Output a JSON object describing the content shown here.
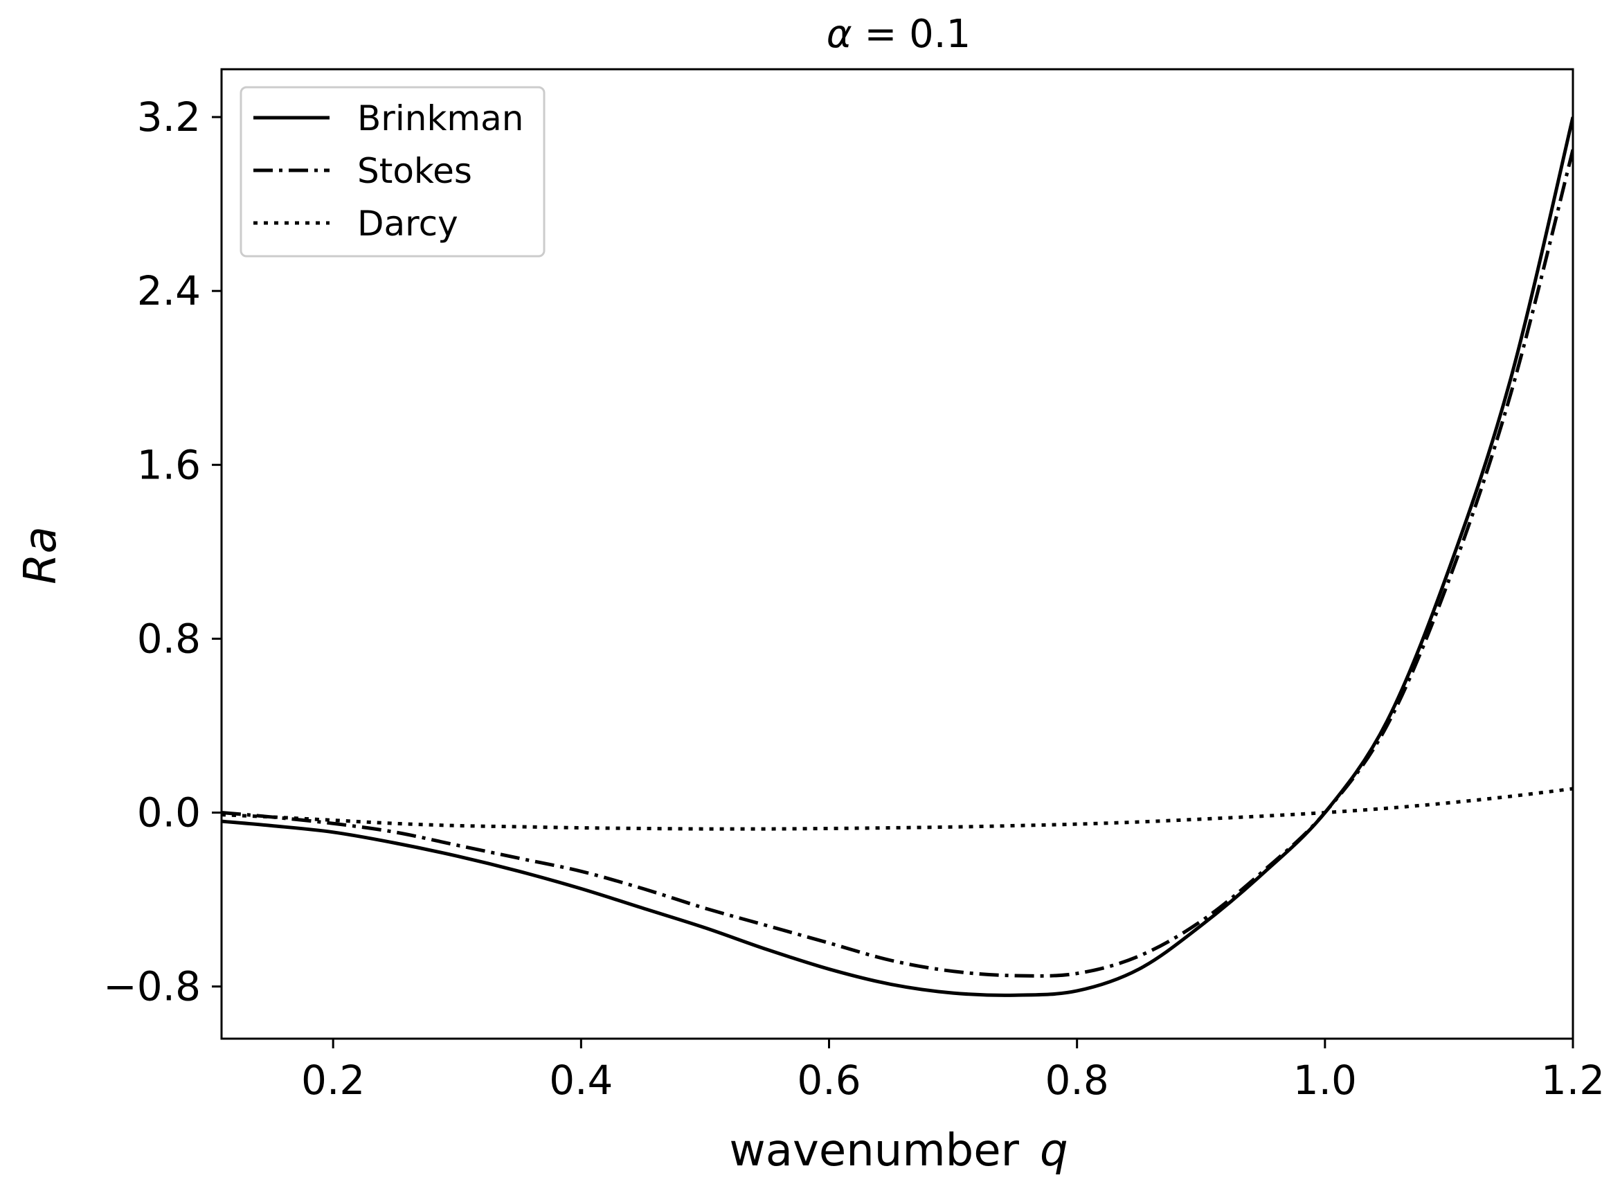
{
  "chart_data": {
    "type": "line",
    "title": "α = 0.1",
    "title_symbol": "α",
    "title_rest": " = 0.1",
    "xlabel": "wavenumber",
    "xlabel_var": "q",
    "ylabel": "Ra",
    "xlim": [
      0.11,
      1.2
    ],
    "ylim": [
      -1.04,
      3.42
    ],
    "xticks": [
      0.2,
      0.4,
      0.6,
      0.8,
      1.0,
      1.2
    ],
    "xtick_labels": [
      "0.2",
      "0.4",
      "0.6",
      "0.8",
      "1.0",
      "1.2"
    ],
    "yticks": [
      -0.8,
      0.0,
      0.8,
      1.6,
      2.4,
      3.2
    ],
    "ytick_labels": [
      "−0.8",
      "0.0",
      "0.8",
      "1.6",
      "2.4",
      "3.2"
    ],
    "grid": false,
    "legend_position": "upper-left",
    "series": [
      {
        "name": "Brinkman",
        "style": "solid",
        "x": [
          0.11,
          0.15,
          0.2,
          0.25,
          0.3,
          0.35,
          0.4,
          0.45,
          0.5,
          0.55,
          0.6,
          0.65,
          0.7,
          0.75,
          0.8,
          0.85,
          0.9,
          0.95,
          1.0,
          1.05,
          1.1,
          1.15,
          1.2
        ],
        "y": [
          -0.04,
          -0.06,
          -0.09,
          -0.14,
          -0.2,
          -0.27,
          -0.35,
          -0.44,
          -0.53,
          -0.63,
          -0.72,
          -0.79,
          -0.83,
          -0.84,
          -0.82,
          -0.72,
          -0.52,
          -0.28,
          0.0,
          0.42,
          1.12,
          2.0,
          3.2
        ]
      },
      {
        "name": "Stokes",
        "style": "dashdot",
        "x": [
          0.11,
          0.15,
          0.2,
          0.25,
          0.3,
          0.35,
          0.4,
          0.45,
          0.5,
          0.55,
          0.6,
          0.65,
          0.7,
          0.75,
          0.8,
          0.85,
          0.9,
          0.95,
          1.0,
          1.05,
          1.1,
          1.15,
          1.2
        ],
        "y": [
          0.0,
          -0.02,
          -0.05,
          -0.09,
          -0.15,
          -0.21,
          -0.27,
          -0.35,
          -0.44,
          -0.52,
          -0.6,
          -0.68,
          -0.73,
          -0.75,
          -0.74,
          -0.66,
          -0.5,
          -0.27,
          0.0,
          0.4,
          1.07,
          1.93,
          3.05
        ]
      },
      {
        "name": "Darcy",
        "style": "dotted",
        "x": [
          0.11,
          0.15,
          0.2,
          0.25,
          0.3,
          0.35,
          0.4,
          0.45,
          0.5,
          0.55,
          0.6,
          0.65,
          0.7,
          0.75,
          0.8,
          0.85,
          0.9,
          0.95,
          1.0,
          1.05,
          1.1,
          1.15,
          1.2
        ],
        "y": [
          -0.01,
          -0.02,
          -0.035,
          -0.05,
          -0.06,
          -0.065,
          -0.07,
          -0.073,
          -0.075,
          -0.075,
          -0.073,
          -0.07,
          -0.066,
          -0.06,
          -0.053,
          -0.043,
          -0.03,
          -0.016,
          0.0,
          0.02,
          0.045,
          0.075,
          0.11
        ]
      }
    ]
  }
}
